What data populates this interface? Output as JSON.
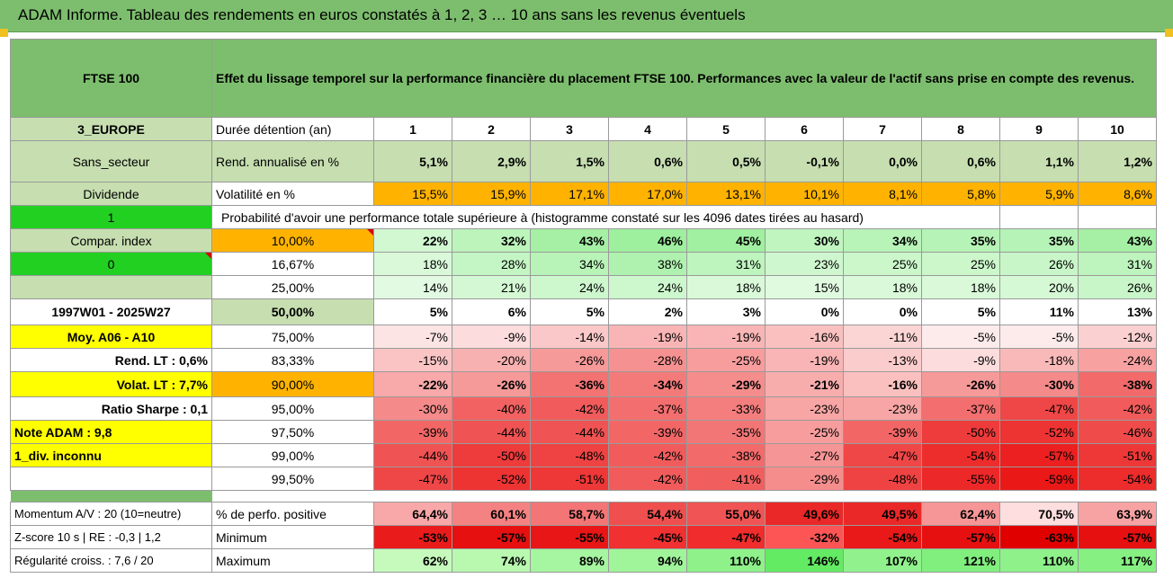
{
  "title": "ADAM Informe. Tableau des rendements en euros constatés à 1, 2, 3 … 10 ans sans les revenus éventuels",
  "index_name": "FTSE 100",
  "description": "Effet du lissage temporel sur la performance financière du placement FTSE 100. Performances avec la valeur de l'actif sans prise en compte des revenus.",
  "left_labels": {
    "region": "3_EUROPE",
    "sector": "Sans_secteur",
    "dividend": "Dividende",
    "one": "1",
    "compar": "Compar. index",
    "zero": "0",
    "period": "1997W01 - 2025W27",
    "moy": "Moy. A06 - A10",
    "rend_lt": "Rend. LT :   0,6%",
    "volat_lt": "Volat. LT :   7,7%",
    "sharpe": "Ratio Sharpe :   0,1",
    "note": "Note ADAM : 9,8",
    "div": "1_div. inconnu",
    "momentum": "Momentum A/V : 20 (10=neutre)",
    "zscore": "Z-score 10 s | RE : -0,3 | 1,2",
    "regularite": "Régularité croiss. : 7,6 / 20"
  },
  "row_labels": {
    "duree": "Durée détention (an)",
    "rend": "Rend. annualisé en %",
    "vol": "Volatilité en %",
    "proba": "Probabilité d'avoir une performance totale supérieure à (histogramme constaté sur les 4096 dates tirées au hasard)",
    "pct_pos": "% de perfo. positive",
    "min": "Minimum",
    "max": "Maximum"
  },
  "years": [
    "1",
    "2",
    "3",
    "4",
    "5",
    "6",
    "7",
    "8",
    "9",
    "10"
  ],
  "rendement": [
    "5,1%",
    "2,9%",
    "1,5%",
    "0,6%",
    "0,5%",
    "-0,1%",
    "0,0%",
    "0,6%",
    "1,1%",
    "1,2%"
  ],
  "volatilite": [
    "15,5%",
    "15,9%",
    "17,1%",
    "17,0%",
    "13,1%",
    "10,1%",
    "8,1%",
    "5,8%",
    "5,9%",
    "8,6%"
  ],
  "thresholds": [
    "10,00%",
    "16,67%",
    "25,00%",
    "50,00%",
    "75,00%",
    "83,33%",
    "90,00%",
    "95,00%",
    "97,50%",
    "99,00%",
    "99,50%"
  ],
  "proba_rows": [
    [
      "22%",
      "32%",
      "43%",
      "46%",
      "45%",
      "30%",
      "34%",
      "35%",
      "35%",
      "43%"
    ],
    [
      "18%",
      "28%",
      "34%",
      "38%",
      "31%",
      "23%",
      "25%",
      "25%",
      "26%",
      "31%"
    ],
    [
      "14%",
      "21%",
      "24%",
      "24%",
      "18%",
      "15%",
      "18%",
      "18%",
      "20%",
      "26%"
    ],
    [
      "5%",
      "6%",
      "5%",
      "2%",
      "3%",
      "0%",
      "0%",
      "5%",
      "11%",
      "13%"
    ],
    [
      "-7%",
      "-9%",
      "-14%",
      "-19%",
      "-19%",
      "-16%",
      "-11%",
      "-5%",
      "-5%",
      "-12%"
    ],
    [
      "-15%",
      "-20%",
      "-26%",
      "-28%",
      "-25%",
      "-19%",
      "-13%",
      "-9%",
      "-18%",
      "-24%"
    ],
    [
      "-22%",
      "-26%",
      "-36%",
      "-34%",
      "-29%",
      "-21%",
      "-16%",
      "-26%",
      "-30%",
      "-38%"
    ],
    [
      "-30%",
      "-40%",
      "-42%",
      "-37%",
      "-33%",
      "-23%",
      "-23%",
      "-37%",
      "-47%",
      "-42%"
    ],
    [
      "-39%",
      "-44%",
      "-44%",
      "-39%",
      "-35%",
      "-25%",
      "-39%",
      "-50%",
      "-52%",
      "-46%"
    ],
    [
      "-44%",
      "-50%",
      "-48%",
      "-42%",
      "-38%",
      "-27%",
      "-47%",
      "-54%",
      "-57%",
      "-51%"
    ],
    [
      "-47%",
      "-52%",
      "-51%",
      "-42%",
      "-41%",
      "-29%",
      "-48%",
      "-55%",
      "-59%",
      "-54%"
    ]
  ],
  "pct_positive": [
    "64,4%",
    "60,1%",
    "58,7%",
    "54,4%",
    "55,0%",
    "49,6%",
    "49,5%",
    "62,4%",
    "70,5%",
    "63,9%"
  ],
  "minimum": [
    "-53%",
    "-57%",
    "-55%",
    "-45%",
    "-47%",
    "-32%",
    "-54%",
    "-57%",
    "-63%",
    "-57%"
  ],
  "maximum": [
    "62%",
    "74%",
    "89%",
    "94%",
    "110%",
    "146%",
    "107%",
    "121%",
    "110%",
    "117%"
  ],
  "colors": {
    "header_green": "#7dbe6e",
    "light_green": "#c6deb0",
    "orange": "#ffb300",
    "yellow": "#ffff00",
    "bright_green": "#22d022",
    "label_red": "#c00000"
  }
}
